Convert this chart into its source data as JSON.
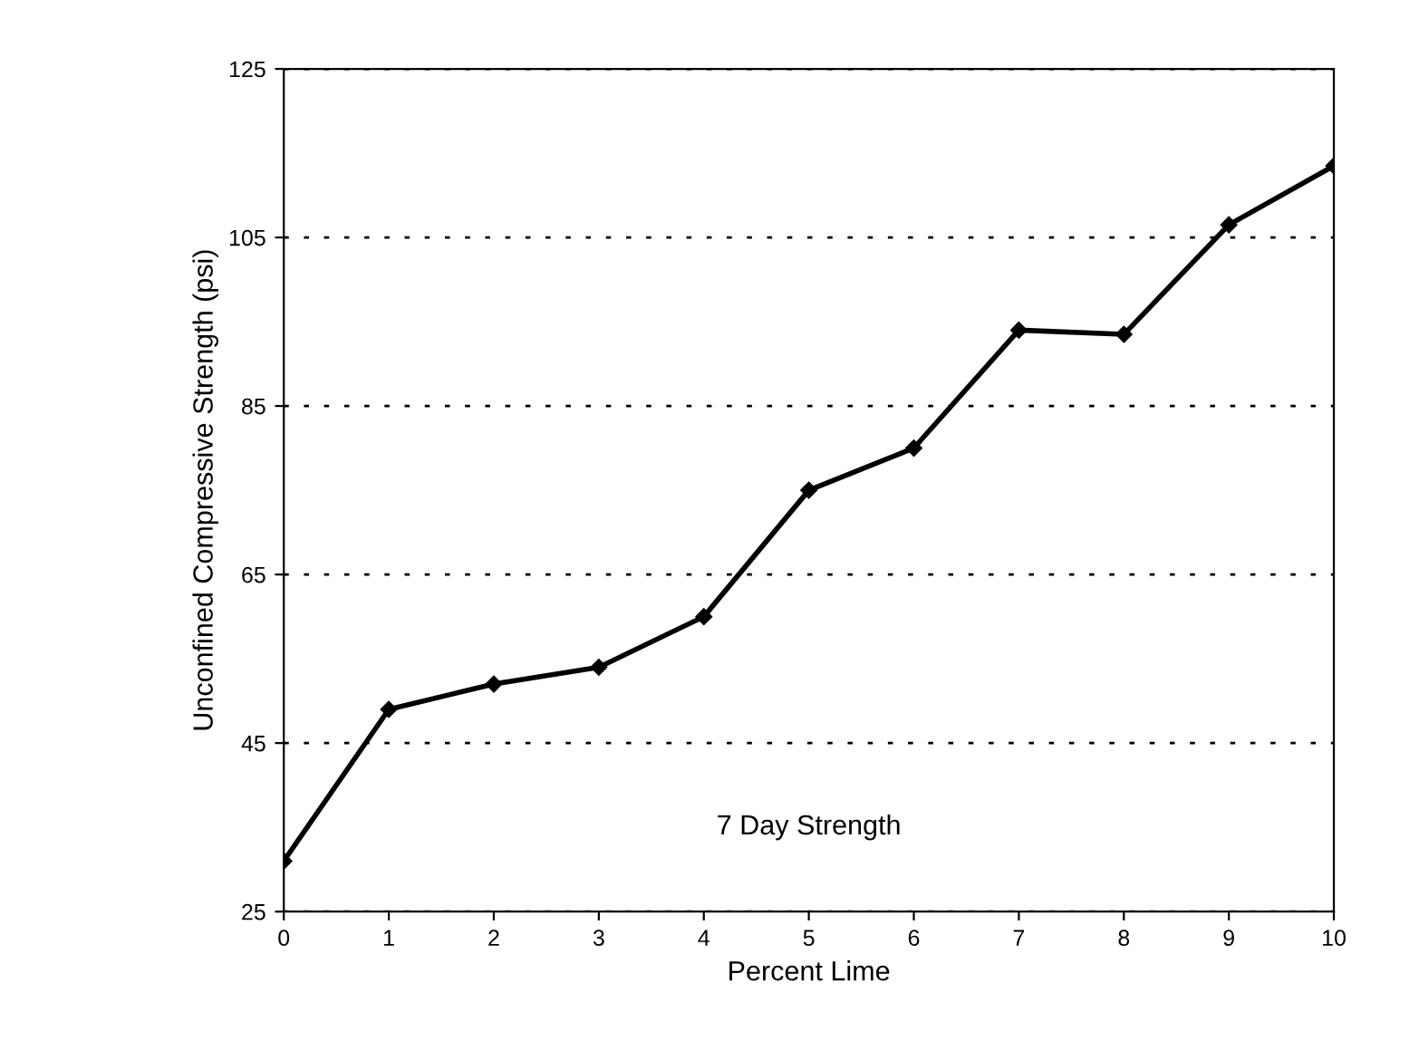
{
  "chart_data": {
    "type": "line",
    "xlabel": "Percent Lime",
    "ylabel": "Unconfined Compressive Strength (psi)",
    "x": [
      0,
      1,
      2,
      3,
      4,
      5,
      6,
      7,
      8,
      9,
      10
    ],
    "series": [
      {
        "color": "#000000",
        "values": [
          31,
          49,
          52,
          54,
          60,
          75,
          80,
          94,
          93.5,
          106.5,
          113.5
        ]
      }
    ],
    "xlim": [
      0,
      10
    ],
    "xticks": [
      0,
      1,
      2,
      3,
      4,
      5,
      6,
      7,
      8,
      9,
      10
    ],
    "ylim": [
      25,
      125
    ],
    "yticks": [
      25,
      45,
      65,
      85,
      105,
      125
    ],
    "grid": "y",
    "marker": "diamond",
    "line_style": "solid",
    "annotations": [
      "7 Day Strength"
    ]
  }
}
